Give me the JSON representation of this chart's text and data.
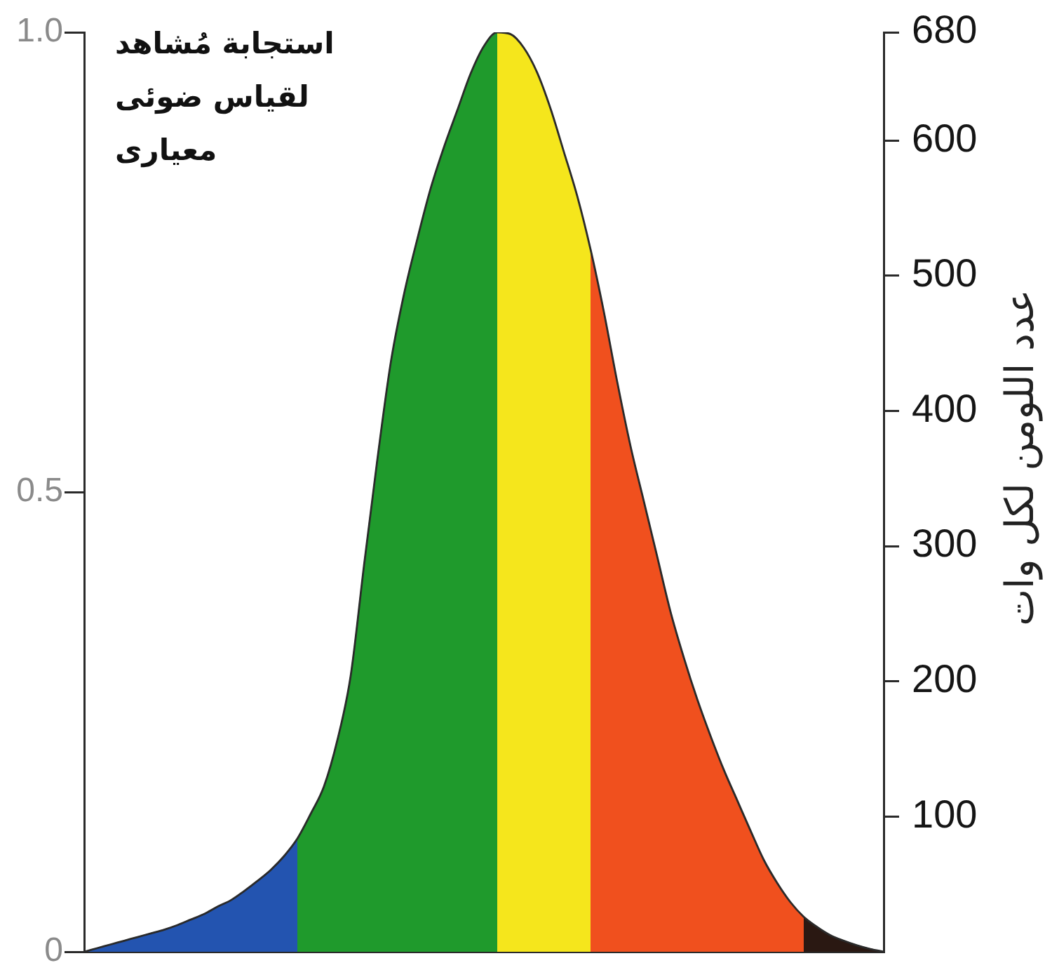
{
  "chart_data": {
    "type": "area",
    "title": "استجابة مُشاهد\nلقياس ضوئى\nمعيارى",
    "y2label": "عدد اللومن لكل وات",
    "categories": [
      null,
      null,
      null,
      null,
      null,
      null,
      null,
      null,
      null,
      null,
      null,
      null,
      null,
      null,
      null,
      null,
      null,
      null,
      null,
      null,
      null,
      null,
      null,
      null,
      null,
      null,
      null,
      null,
      null,
      null,
      null,
      null,
      null,
      null,
      null,
      null,
      null,
      null,
      null,
      null,
      null,
      null,
      null,
      null,
      null,
      null,
      null,
      null,
      null,
      null,
      null,
      null,
      null,
      null,
      null,
      null,
      null,
      null,
      null,
      null,
      null
    ],
    "series": [
      {
        "color": "#2354b0",
        "values": [
          0,
          0.004,
          0.008,
          0.012,
          0.016,
          0.02,
          0.024,
          0.029,
          0.035,
          0.041,
          0.049,
          0.056,
          0.066,
          0.077,
          0.089,
          0.104,
          0.123,
          null,
          null,
          null,
          null,
          null,
          null,
          null,
          null,
          null,
          null,
          null,
          null,
          null,
          null,
          null,
          null,
          null,
          null,
          null,
          null,
          null,
          null,
          null,
          null,
          null,
          null,
          null,
          null,
          null,
          null,
          null,
          null,
          null,
          null,
          null,
          null,
          null,
          null,
          null,
          null,
          null,
          null,
          null,
          null
        ]
      },
      {
        "color": "#1f9a2c",
        "values": [
          null,
          null,
          null,
          null,
          null,
          null,
          null,
          null,
          null,
          null,
          null,
          null,
          null,
          null,
          null,
          null,
          0.123,
          0.15,
          0.18,
          0.23,
          0.3,
          0.42,
          0.535,
          0.64,
          0.715,
          0.775,
          0.83,
          0.875,
          0.915,
          0.955,
          0.985,
          1,
          null,
          null,
          null,
          null,
          null,
          null,
          null,
          null,
          null,
          null,
          null,
          null,
          null,
          null,
          null,
          null,
          null,
          null,
          null,
          null,
          null,
          null,
          null,
          null,
          null,
          null,
          null,
          null,
          null
        ]
      },
      {
        "color": "#f5e61c",
        "values": [
          null,
          null,
          null,
          null,
          null,
          null,
          null,
          null,
          null,
          null,
          null,
          null,
          null,
          null,
          null,
          null,
          null,
          null,
          null,
          null,
          null,
          null,
          null,
          null,
          null,
          null,
          null,
          null,
          null,
          null,
          null,
          1,
          0.998,
          0.983,
          0.956,
          0.917,
          0.87,
          0.822,
          0.764,
          null,
          null,
          null,
          null,
          null,
          null,
          null,
          null,
          null,
          null,
          null,
          null,
          null,
          null,
          null,
          null,
          null,
          null,
          null,
          null,
          null,
          null
        ]
      },
      {
        "color": "#f0501e",
        "values": [
          null,
          null,
          null,
          null,
          null,
          null,
          null,
          null,
          null,
          null,
          null,
          null,
          null,
          null,
          null,
          null,
          null,
          null,
          null,
          null,
          null,
          null,
          null,
          null,
          null,
          null,
          null,
          null,
          null,
          null,
          null,
          null,
          null,
          null,
          null,
          null,
          null,
          null,
          0.764,
          0.696,
          0.62,
          0.55,
          0.49,
          0.43,
          0.37,
          0.32,
          0.275,
          0.235,
          0.198,
          0.165,
          0.132,
          0.1,
          0.075,
          0.054,
          0.038,
          null,
          null,
          null,
          null,
          null,
          null
        ]
      },
      {
        "color": "#2a1812",
        "values": [
          null,
          null,
          null,
          null,
          null,
          null,
          null,
          null,
          null,
          null,
          null,
          null,
          null,
          null,
          null,
          null,
          null,
          null,
          null,
          null,
          null,
          null,
          null,
          null,
          null,
          null,
          null,
          null,
          null,
          null,
          null,
          null,
          null,
          null,
          null,
          null,
          null,
          null,
          null,
          null,
          null,
          null,
          null,
          null,
          null,
          null,
          null,
          null,
          null,
          null,
          null,
          null,
          null,
          null,
          0.038,
          0.027,
          0.018,
          0.012,
          0.007,
          0.003,
          0
        ]
      },
      {
        "type": "line",
        "color": "#2a2a2a",
        "values": [
          0,
          0.004,
          0.008,
          0.012,
          0.016,
          0.02,
          0.024,
          0.029,
          0.035,
          0.041,
          0.049,
          0.056,
          0.066,
          0.077,
          0.089,
          0.104,
          0.123,
          0.15,
          0.18,
          0.23,
          0.3,
          0.42,
          0.535,
          0.64,
          0.715,
          0.775,
          0.83,
          0.875,
          0.915,
          0.955,
          0.985,
          1,
          0.998,
          0.983,
          0.956,
          0.917,
          0.87,
          0.822,
          0.764,
          0.696,
          0.62,
          0.55,
          0.49,
          0.43,
          0.37,
          0.32,
          0.275,
          0.235,
          0.198,
          0.165,
          0.132,
          0.1,
          0.075,
          0.054,
          0.038,
          0.027,
          0.018,
          0.012,
          0.007,
          0.003,
          0
        ]
      }
    ],
    "ylim": [
      0,
      1
    ],
    "yticks": [
      0,
      0.5,
      {
        "value": 1,
        "label": "1.0"
      }
    ],
    "y2lim": [
      0,
      680
    ],
    "y2ticks": [
      100,
      200,
      300,
      400,
      500,
      600,
      680
    ]
  }
}
